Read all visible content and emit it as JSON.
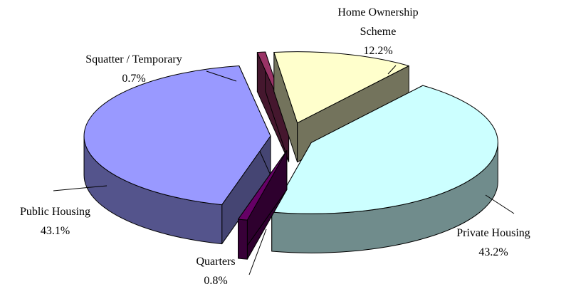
{
  "chart_data": {
    "type": "pie",
    "categories": [
      "Home Ownership Scheme",
      "Private Housing",
      "Quarters",
      "Public Housing",
      "Squatter / Temporary"
    ],
    "values": [
      12.2,
      43.2,
      0.8,
      43.1,
      0.7
    ],
    "value_labels": [
      "12.2%",
      "43.2%",
      "0.8%",
      "43.1%",
      "0.7%"
    ],
    "colors": [
      "#ffffcc",
      "#ccffff",
      "#660066",
      "#9999ff",
      "#993366"
    ]
  }
}
